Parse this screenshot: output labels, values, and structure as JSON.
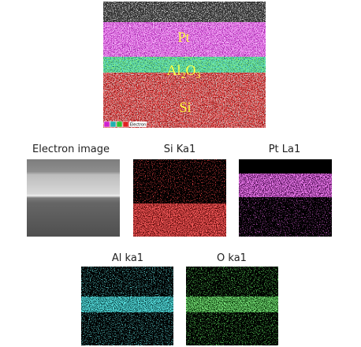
{
  "main_image": {
    "labels": {
      "pt": "Pt",
      "al2o3": [
        "Al",
        "2",
        "O",
        "3"
      ],
      "si": "Si"
    },
    "legend_label": "Electron"
  },
  "panels": [
    {
      "title": "Electron image"
    },
    {
      "title": "Si Ka1"
    },
    {
      "title": "Pt La1"
    },
    {
      "title": "Al ka1"
    },
    {
      "title": "O ka1"
    }
  ]
}
